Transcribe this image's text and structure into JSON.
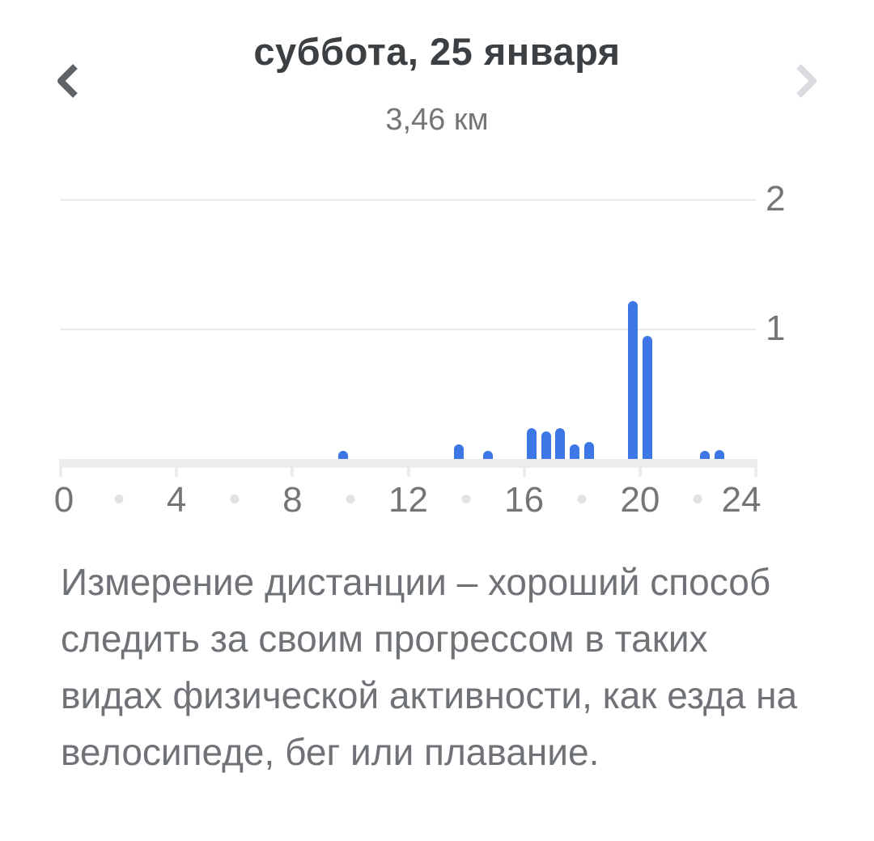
{
  "header": {
    "title": "суббота, 25 января",
    "subtitle": "3,46 км",
    "prev_icon": "chevron-left-icon",
    "next_icon": "chevron-right-icon"
  },
  "chart_data": {
    "type": "bar",
    "title": "суббота, 25 января",
    "total_label": "3,46 км",
    "unit": "км",
    "x_axis": {
      "range": [
        0,
        24
      ],
      "tick_labels": [
        0,
        4,
        8,
        12,
        16,
        20,
        24
      ],
      "minor_dots": [
        2,
        6,
        10,
        14,
        18,
        22
      ]
    },
    "y_axis": {
      "range": [
        0,
        2
      ],
      "tick_labels": [
        1,
        2
      ],
      "side": "right"
    },
    "grid": "horizontal",
    "legend": "none",
    "bars": [
      {
        "hour": 9.75,
        "km": 0.06
      },
      {
        "hour": 13.75,
        "km": 0.11
      },
      {
        "hour": 14.75,
        "km": 0.06
      },
      {
        "hour": 16.25,
        "km": 0.24
      },
      {
        "hour": 16.75,
        "km": 0.21
      },
      {
        "hour": 17.25,
        "km": 0.24
      },
      {
        "hour": 17.75,
        "km": 0.11
      },
      {
        "hour": 18.25,
        "km": 0.13
      },
      {
        "hour": 19.75,
        "km": 1.22
      },
      {
        "hour": 20.25,
        "km": 0.95
      },
      {
        "hour": 22.25,
        "km": 0.06
      },
      {
        "hour": 22.75,
        "km": 0.07
      }
    ]
  },
  "description": {
    "text": "Измерение дистанции – хороший способ следить за своим прогрессом в таких видах физической активности, как езда на велосипеде, бег или плавание."
  },
  "colors": {
    "bar": "#3D76E5",
    "gridline": "#e9e9e9",
    "axis_band": "#ececec",
    "minor_dot": "#e2e2e2",
    "title_text": "#3c4043",
    "secondary_text": "#757575",
    "body_text": "#6f7276",
    "nav_enabled": "#5f6368",
    "nav_disabled": "#dadce0"
  }
}
